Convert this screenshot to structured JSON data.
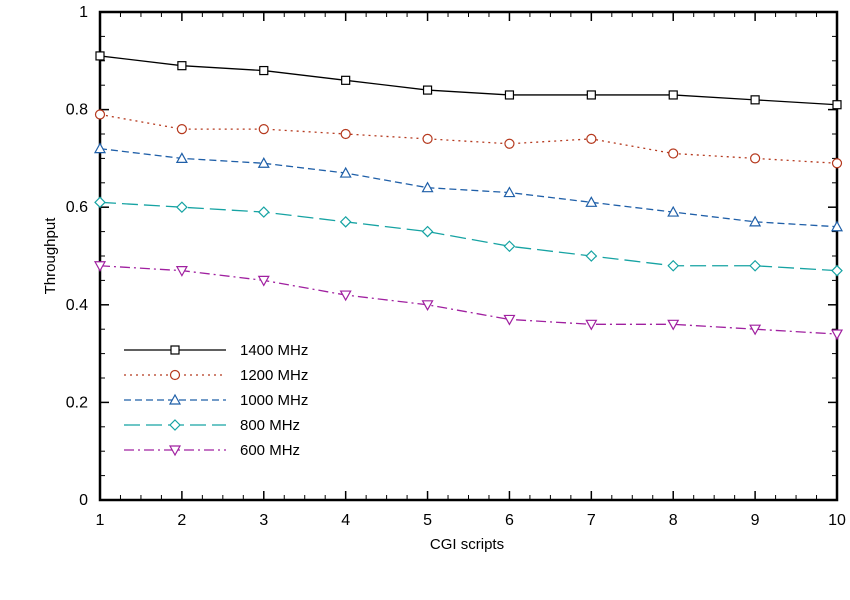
{
  "chart_data": {
    "type": "line",
    "title": "",
    "xlabel": "CGI scripts",
    "ylabel": "Throughput",
    "xlim": [
      1,
      10
    ],
    "ylim": [
      0,
      1
    ],
    "x": [
      1,
      2,
      3,
      4,
      5,
      6,
      7,
      8,
      9,
      10
    ],
    "x_ticks": [
      "1",
      "2",
      "3",
      "4",
      "5",
      "6",
      "7",
      "8",
      "9",
      "10"
    ],
    "y_ticks": [
      "0",
      "0.2",
      "0.4",
      "0.6",
      "0.8",
      "1"
    ],
    "grid": false,
    "legend_position": "lower-left",
    "series": [
      {
        "name": "1400 MHz",
        "color": "#000000",
        "marker": "square",
        "dash": "solid",
        "values": [
          0.91,
          0.89,
          0.88,
          0.86,
          0.84,
          0.83,
          0.83,
          0.83,
          0.82,
          0.81
        ]
      },
      {
        "name": "1200 MHz",
        "color": "#b5391e",
        "marker": "circle",
        "dash": "dotted",
        "values": [
          0.79,
          0.76,
          0.76,
          0.75,
          0.74,
          0.73,
          0.74,
          0.71,
          0.7,
          0.69
        ]
      },
      {
        "name": "1000 MHz",
        "color": "#1f5fa8",
        "marker": "triangle-up",
        "dash": "dashed",
        "values": [
          0.72,
          0.7,
          0.69,
          0.67,
          0.64,
          0.63,
          0.61,
          0.59,
          0.57,
          0.56
        ]
      },
      {
        "name": "800 MHz",
        "color": "#16a3a3",
        "marker": "diamond",
        "dash": "long-dash",
        "values": [
          0.61,
          0.6,
          0.59,
          0.57,
          0.55,
          0.52,
          0.5,
          0.48,
          0.48,
          0.47
        ]
      },
      {
        "name": "600 MHz",
        "color": "#a020a0",
        "marker": "triangle-down",
        "dash": "dash-dot",
        "values": [
          0.48,
          0.47,
          0.45,
          0.42,
          0.4,
          0.37,
          0.36,
          0.36,
          0.35,
          0.34
        ]
      }
    ]
  }
}
